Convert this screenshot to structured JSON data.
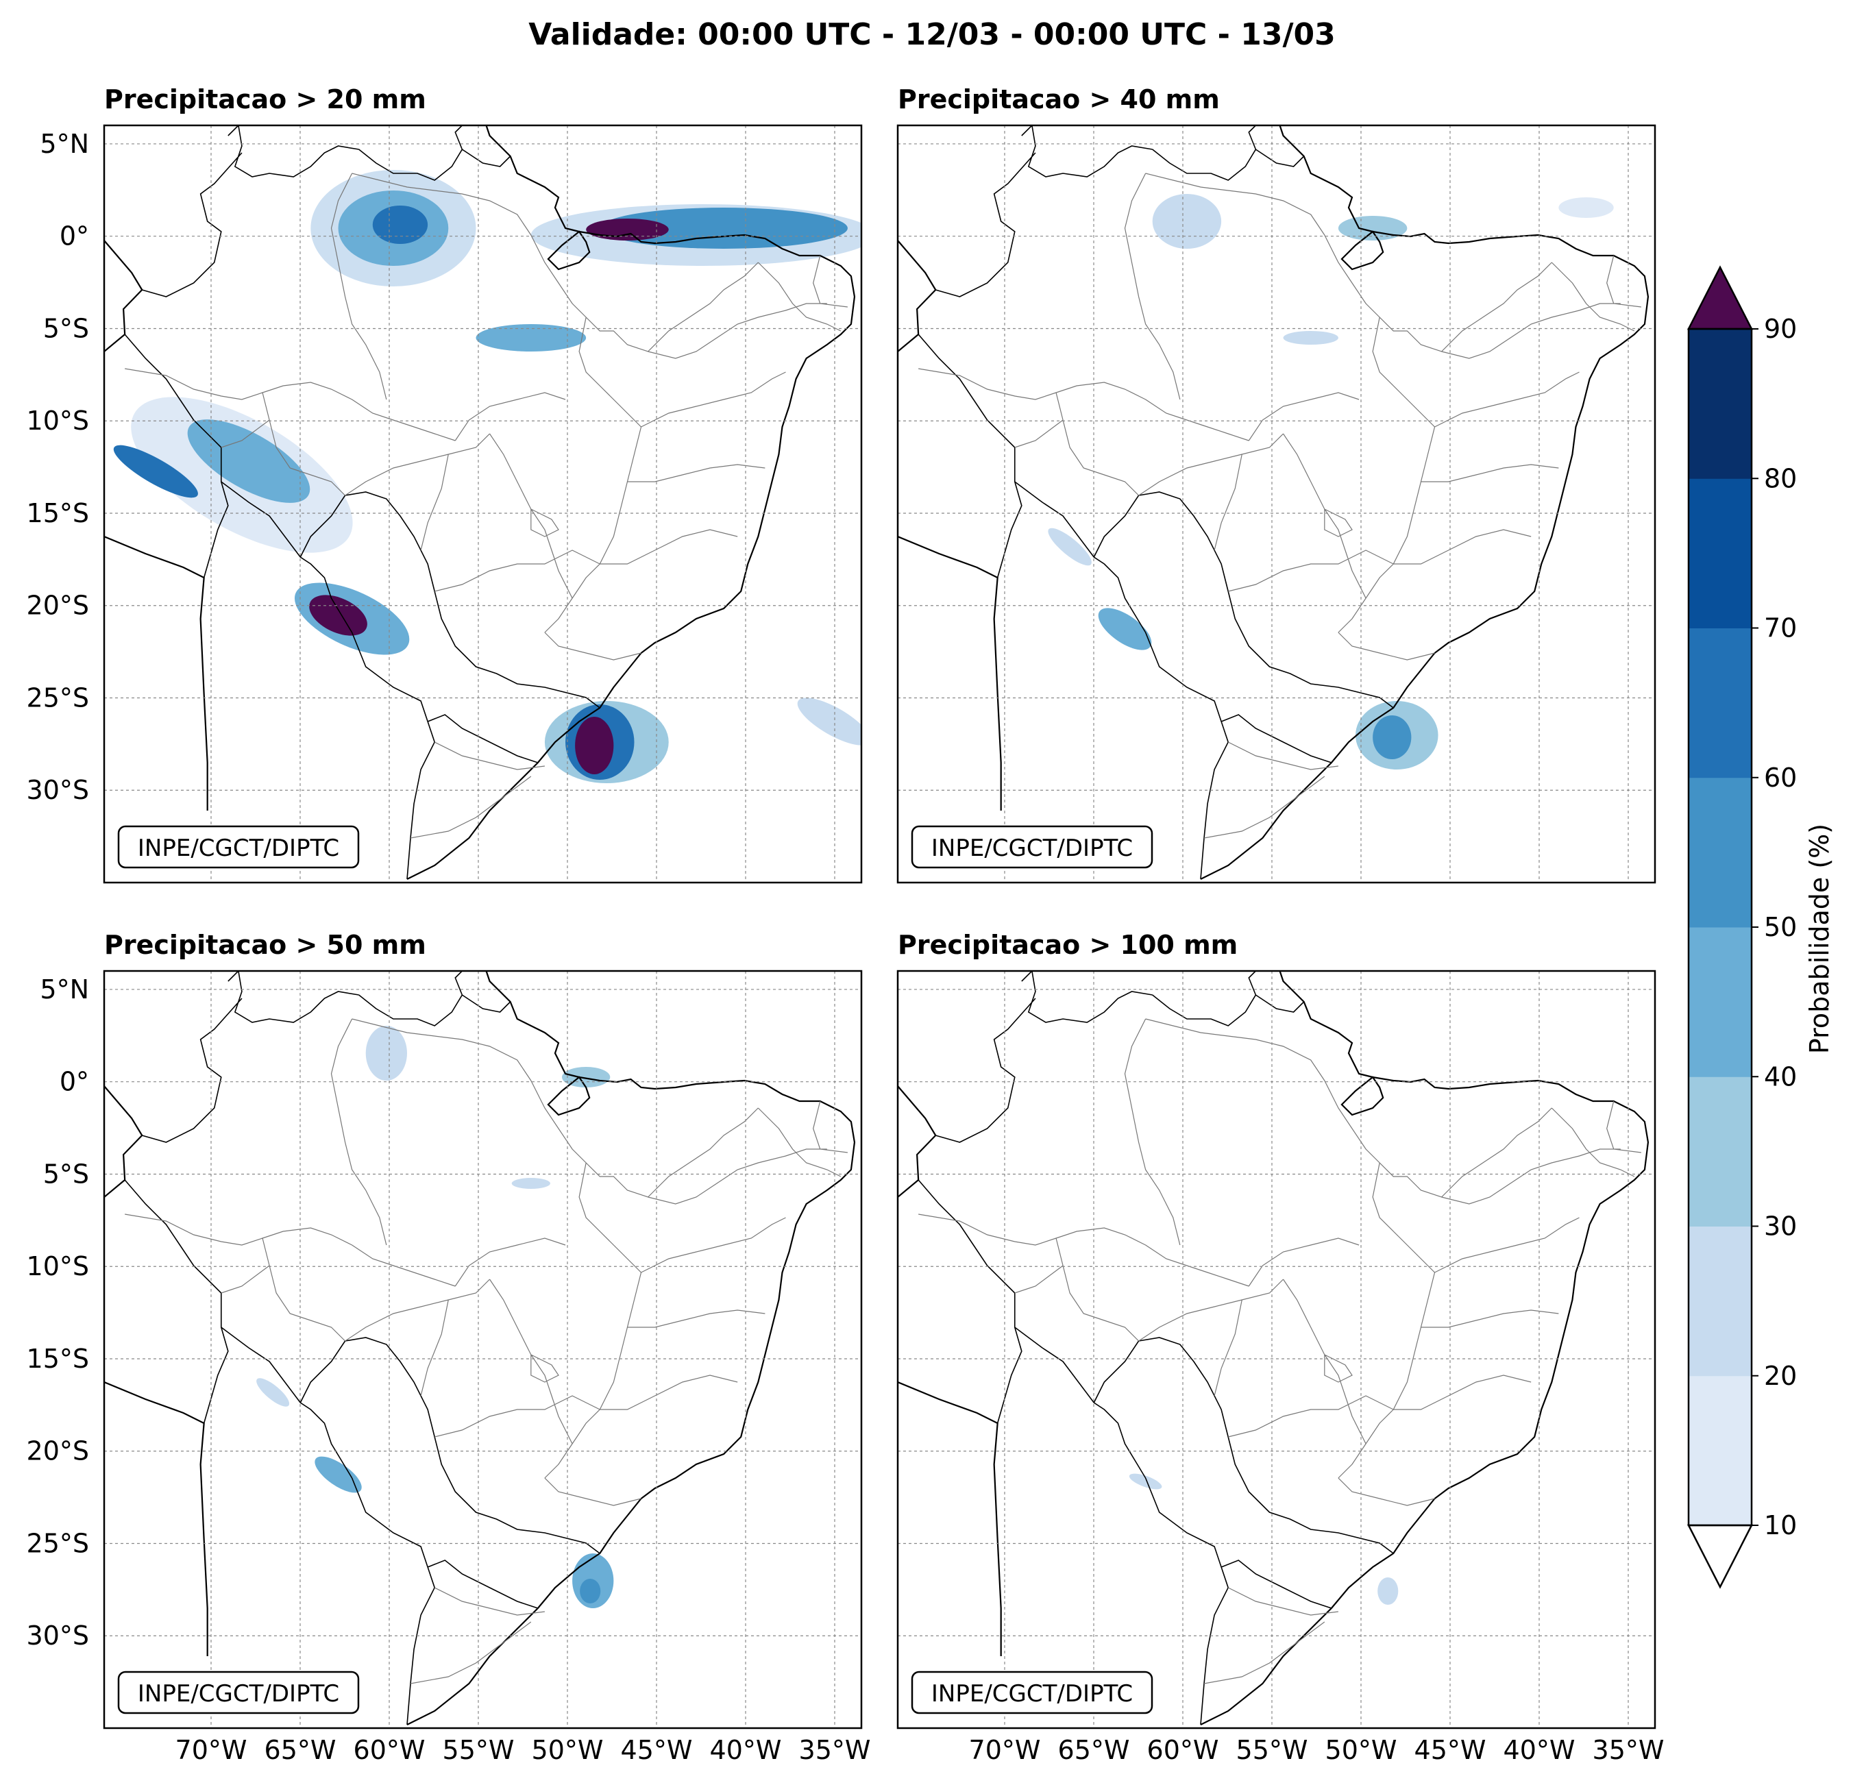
{
  "figure": {
    "title": "Validade: 00:00 UTC - 12/03 - 00:00 UTC - 13/03"
  },
  "panels": [
    {
      "title": "Precipitacao > 20 mm",
      "credit": "INPE/CGCT/DIPTC"
    },
    {
      "title": "Precipitacao > 40 mm",
      "credit": "INPE/CGCT/DIPTC"
    },
    {
      "title": "Precipitacao > 50 mm",
      "credit": "INPE/CGCT/DIPTC"
    },
    {
      "title": "Precipitacao > 100 mm",
      "credit": "INPE/CGCT/DIPTC"
    }
  ],
  "map": {
    "lon_range": [
      -76,
      -33.5
    ],
    "lat_range": [
      -35,
      6
    ],
    "lat_ticks": [
      {
        "value": 5,
        "label": "5°N"
      },
      {
        "value": 0,
        "label": "0°"
      },
      {
        "value": -5,
        "label": "5°S"
      },
      {
        "value": -10,
        "label": "10°S"
      },
      {
        "value": -15,
        "label": "15°S"
      },
      {
        "value": -20,
        "label": "20°S"
      },
      {
        "value": -25,
        "label": "25°S"
      },
      {
        "value": -30,
        "label": "30°S"
      }
    ],
    "lon_ticks": [
      {
        "value": -70,
        "label": "70°W"
      },
      {
        "value": -65,
        "label": "65°W"
      },
      {
        "value": -60,
        "label": "60°W"
      },
      {
        "value": -55,
        "label": "55°W"
      },
      {
        "value": -50,
        "label": "50°W"
      },
      {
        "value": -45,
        "label": "45°W"
      },
      {
        "value": -40,
        "label": "40°W"
      },
      {
        "value": -35,
        "label": "35°W"
      }
    ]
  },
  "colorbar": {
    "label": "Probabilidade (%)",
    "levels": [
      10,
      20,
      30,
      40,
      50,
      60,
      70,
      80,
      90
    ],
    "colors": [
      "#dee9f6",
      "#c7dbef",
      "#9dcae0",
      "#6aaed6",
      "#4292c6",
      "#2271b5",
      "#08509b",
      "#08306b"
    ],
    "over_color": "#4d0a4f",
    "under_color": "#ffffff",
    "tick_labels": [
      "10",
      "20",
      "30",
      "40",
      "50",
      "60",
      "70",
      "80",
      "90"
    ]
  }
}
